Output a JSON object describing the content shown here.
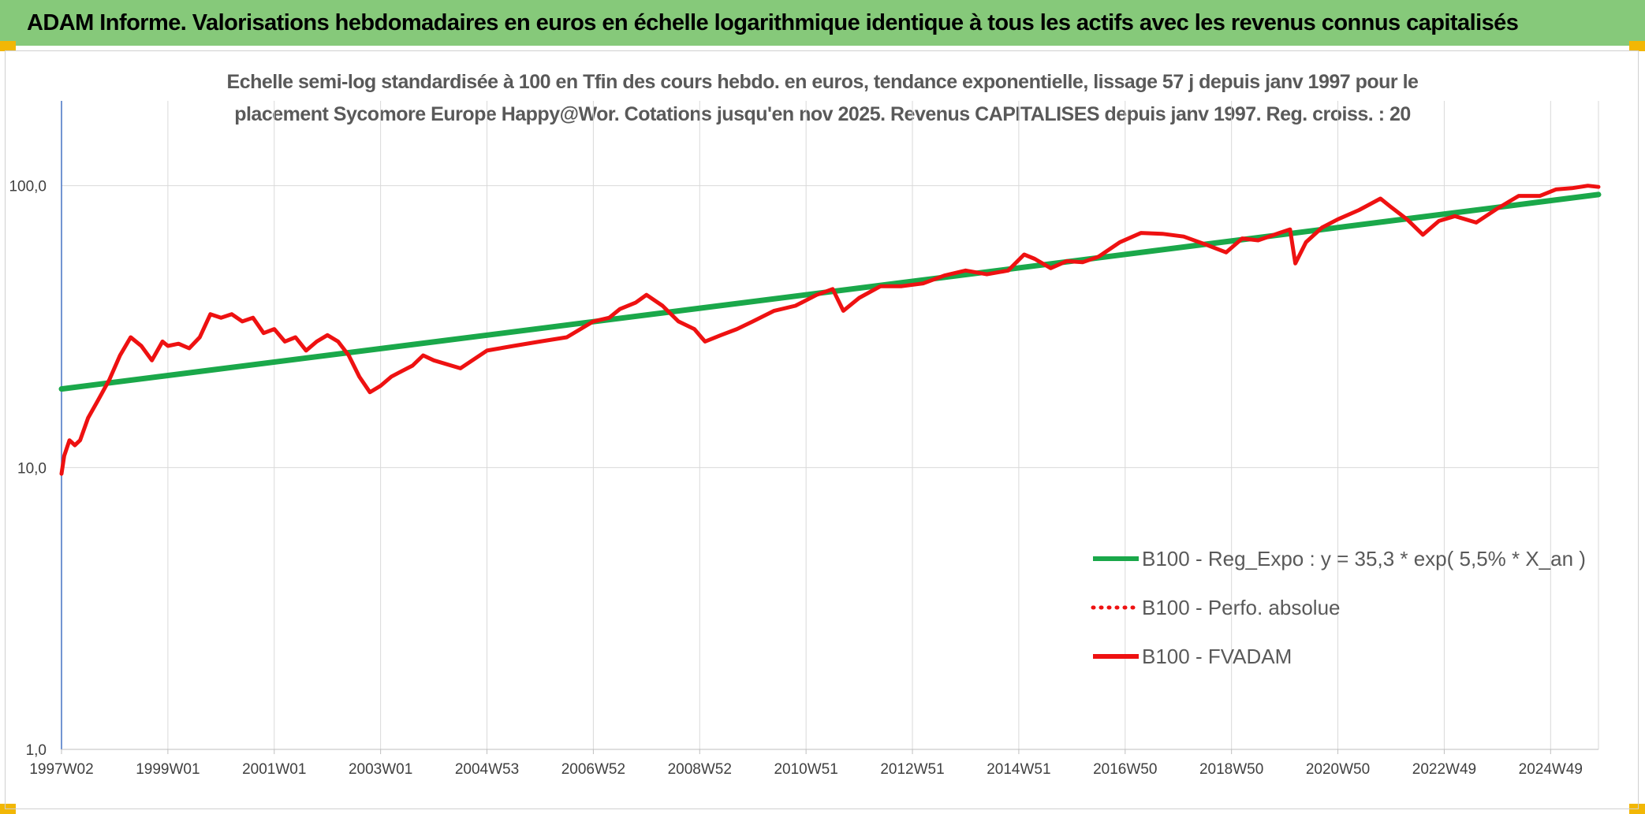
{
  "header": {
    "title": "ADAM Informe. Valorisations hebdomadaires en euros en échelle logarithmique identique à tous les actifs avec les revenus connus capitalisés"
  },
  "colors": {
    "header_bg": "#86c97a",
    "accent": "#f2b705",
    "reg_line": "#1aa84a",
    "fvadam_line": "#ee1111"
  },
  "chart_data": {
    "type": "line",
    "title_lines": [
      "Echelle semi-log standardisée à 100 en Tfin des cours hebdo. en euros, tendance exponentielle, lissage 57 j depuis janv 1997 pour le",
      "placement Sycomore Europe Happy@Wor. Cotations jusqu'en nov 2025. Revenus CAPITALISES depuis janv 1997. Reg. croiss. : 20"
    ],
    "y_scale": "log",
    "ylim": [
      1,
      200
    ],
    "y_ticks": [
      {
        "value": 1,
        "label": "1,0"
      },
      {
        "value": 10,
        "label": "10,0"
      },
      {
        "value": 100,
        "label": "100,0"
      }
    ],
    "xlim": [
      1997.0,
      2025.9
    ],
    "x_ticks": [
      {
        "value": 1997.0,
        "label": "1997W02"
      },
      {
        "value": 1999.0,
        "label": "1999W01"
      },
      {
        "value": 2001.0,
        "label": "2001W01"
      },
      {
        "value": 2003.0,
        "label": "2003W01"
      },
      {
        "value": 2005.0,
        "label": "2004W53"
      },
      {
        "value": 2007.0,
        "label": "2006W52"
      },
      {
        "value": 2009.0,
        "label": "2008W52"
      },
      {
        "value": 2011.0,
        "label": "2010W51"
      },
      {
        "value": 2013.0,
        "label": "2012W51"
      },
      {
        "value": 2015.0,
        "label": "2014W51"
      },
      {
        "value": 2017.0,
        "label": "2016W50"
      },
      {
        "value": 2019.0,
        "label": "2018W50"
      },
      {
        "value": 2021.0,
        "label": "2020W50"
      },
      {
        "value": 2023.0,
        "label": "2022W49"
      },
      {
        "value": 2025.0,
        "label": "2024W49"
      }
    ],
    "grid": "vertical",
    "legend_position": "bottom-right",
    "series": [
      {
        "name": "B100 - Reg_Expo : y = 35,3 * exp( 5,5% *  X_an )",
        "style": "solid",
        "color": "#1aa84a",
        "x": [
          1997.0,
          2025.9
        ],
        "y": [
          19.0,
          93.0
        ]
      },
      {
        "name": "B100 - Perfo. absolue",
        "style": "dotted",
        "color": "#ee1111",
        "x": [],
        "y": []
      },
      {
        "name": "B100 - FVADAM",
        "style": "solid",
        "color": "#ee1111",
        "x": [
          1997.0,
          1997.05,
          1997.15,
          1997.25,
          1997.35,
          1997.5,
          1997.7,
          1997.9,
          1998.1,
          1998.3,
          1998.5,
          1998.7,
          1998.9,
          1999.0,
          1999.2,
          1999.4,
          1999.6,
          1999.8,
          2000.0,
          2000.2,
          2000.4,
          2000.6,
          2000.8,
          2001.0,
          2001.2,
          2001.4,
          2001.6,
          2001.8,
          2002.0,
          2002.2,
          2002.4,
          2002.6,
          2002.8,
          2003.0,
          2003.2,
          2003.4,
          2003.6,
          2003.8,
          2004.0,
          2004.5,
          2005.0,
          2005.5,
          2006.0,
          2006.5,
          2007.0,
          2007.3,
          2007.5,
          2007.8,
          2008.0,
          2008.3,
          2008.6,
          2008.9,
          2009.1,
          2009.4,
          2009.7,
          2010.0,
          2010.4,
          2010.8,
          2011.2,
          2011.5,
          2011.7,
          2012.0,
          2012.4,
          2012.8,
          2013.2,
          2013.6,
          2014.0,
          2014.4,
          2014.8,
          2015.1,
          2015.3,
          2015.6,
          2015.9,
          2016.2,
          2016.5,
          2016.9,
          2017.3,
          2017.7,
          2018.1,
          2018.5,
          2018.9,
          2019.2,
          2019.5,
          2019.9,
          2020.1,
          2020.2,
          2020.4,
          2020.7,
          2021.0,
          2021.4,
          2021.8,
          2022.0,
          2022.3,
          2022.6,
          2022.9,
          2023.2,
          2023.6,
          2024.0,
          2024.4,
          2024.8,
          2025.1,
          2025.4,
          2025.7,
          2025.9
        ],
        "y": [
          9.5,
          11.0,
          12.5,
          12.0,
          12.5,
          15.0,
          17.5,
          20.5,
          25.0,
          29.0,
          27.0,
          24.0,
          28.0,
          27.0,
          27.5,
          26.5,
          29.0,
          35.0,
          34.0,
          35.0,
          33.0,
          34.0,
          30.0,
          31.0,
          28.0,
          29.0,
          26.0,
          28.0,
          29.5,
          28.0,
          25.0,
          21.0,
          18.5,
          19.5,
          21.0,
          22.0,
          23.0,
          25.0,
          24.0,
          22.5,
          26.0,
          27.0,
          28.0,
          29.0,
          33.0,
          34.0,
          36.5,
          38.5,
          41.0,
          37.5,
          33.0,
          31.0,
          28.0,
          29.5,
          31.0,
          33.0,
          36.0,
          37.5,
          41.0,
          43.0,
          36.0,
          40.0,
          44.0,
          44.0,
          45.0,
          48.0,
          50.0,
          48.5,
          50.0,
          57.0,
          55.0,
          51.0,
          54.0,
          53.5,
          56.0,
          63.0,
          68.0,
          67.5,
          66.0,
          62.0,
          58.0,
          65.0,
          64.0,
          68.0,
          70.0,
          53.0,
          63.0,
          71.0,
          76.0,
          82.0,
          90.0,
          84.0,
          76.0,
          67.0,
          75.0,
          78.0,
          74.0,
          83.0,
          92.0,
          92.0,
          97.0,
          98.0,
          100.0,
          99.0
        ]
      }
    ]
  }
}
